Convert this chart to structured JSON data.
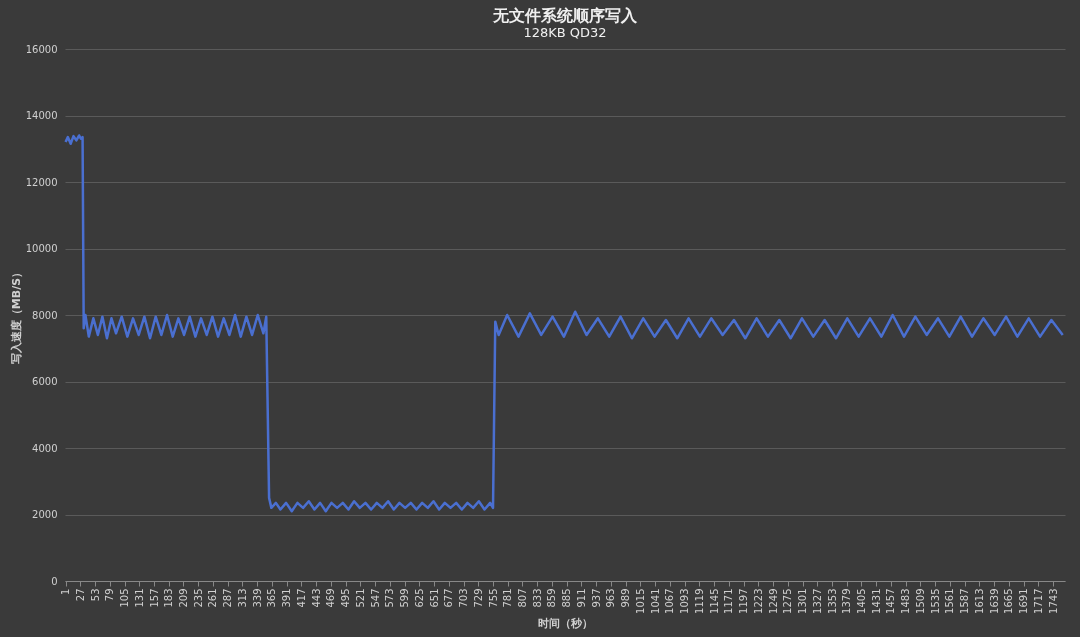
{
  "chart_data": {
    "type": "line",
    "title": "无文件系统顺序写入",
    "subtitle": "128KB QD32",
    "xlabel": "时间（秒）",
    "ylabel": "写入速度（MB/S）",
    "xlim": [
      0,
      1764
    ],
    "xticks": [
      1,
      27,
      53,
      79,
      105,
      131,
      157,
      183,
      209,
      235,
      261,
      287,
      313,
      339,
      365,
      391,
      417,
      443,
      469,
      495,
      521,
      547,
      573,
      599,
      625,
      651,
      677,
      703,
      729,
      755,
      781,
      807,
      833,
      859,
      885,
      911,
      937,
      963,
      989,
      1015,
      1041,
      1067,
      1093,
      1119,
      1145,
      1171,
      1197,
      1223,
      1249,
      1275,
      1301,
      1327,
      1353,
      1379,
      1405,
      1431,
      1457,
      1483,
      1509,
      1535,
      1561,
      1587,
      1613,
      1639,
      1665,
      1691,
      1717,
      1743
    ],
    "ylim": [
      0,
      16000
    ],
    "yticks": [
      0,
      2000,
      4000,
      6000,
      8000,
      10000,
      12000,
      14000,
      16000
    ],
    "grid": "y",
    "series": [
      {
        "color": "#4a6fd0",
        "x": [
          1,
          5,
          10,
          15,
          20,
          25,
          28,
          31,
          33,
          36,
          42,
          50,
          58,
          66,
          74,
          82,
          90,
          100,
          110,
          120,
          130,
          140,
          150,
          160,
          170,
          180,
          190,
          200,
          210,
          220,
          230,
          240,
          250,
          260,
          270,
          280,
          290,
          300,
          310,
          320,
          330,
          340,
          350,
          355,
          360,
          364,
          372,
          380,
          390,
          400,
          410,
          420,
          430,
          440,
          450,
          460,
          470,
          480,
          490,
          500,
          510,
          520,
          530,
          540,
          550,
          560,
          570,
          580,
          590,
          600,
          610,
          620,
          630,
          640,
          650,
          660,
          670,
          680,
          690,
          700,
          710,
          720,
          730,
          740,
          750,
          755,
          759,
          765,
          780,
          800,
          820,
          840,
          860,
          880,
          900,
          920,
          940,
          960,
          980,
          1000,
          1020,
          1040,
          1060,
          1080,
          1100,
          1120,
          1140,
          1160,
          1180,
          1200,
          1220,
          1240,
          1260,
          1280,
          1300,
          1320,
          1340,
          1360,
          1380,
          1400,
          1420,
          1440,
          1460,
          1480,
          1500,
          1520,
          1540,
          1560,
          1580,
          1600,
          1620,
          1640,
          1660,
          1680,
          1700,
          1720,
          1740,
          1760
        ],
        "values": [
          13200,
          13350,
          13150,
          13380,
          13250,
          13400,
          13300,
          13350,
          7600,
          8000,
          7350,
          7900,
          7400,
          7950,
          7300,
          7900,
          7450,
          7950,
          7350,
          7900,
          7400,
          7950,
          7300,
          7950,
          7400,
          8000,
          7350,
          7900,
          7400,
          7950,
          7350,
          7900,
          7400,
          7950,
          7350,
          7900,
          7400,
          8000,
          7350,
          7950,
          7400,
          8000,
          7450,
          7950,
          2500,
          2200,
          2350,
          2150,
          2350,
          2100,
          2350,
          2200,
          2400,
          2150,
          2350,
          2100,
          2350,
          2200,
          2350,
          2150,
          2400,
          2200,
          2350,
          2150,
          2350,
          2200,
          2400,
          2150,
          2350,
          2200,
          2350,
          2150,
          2350,
          2200,
          2400,
          2150,
          2350,
          2200,
          2350,
          2150,
          2350,
          2200,
          2400,
          2150,
          2350,
          2200,
          7800,
          7400,
          8000,
          7350,
          8050,
          7400,
          7950,
          7350,
          8100,
          7400,
          7900,
          7350,
          7950,
          7300,
          7900,
          7350,
          7850,
          7300,
          7900,
          7350,
          7900,
          7400,
          7850,
          7300,
          7900,
          7350,
          7850,
          7300,
          7900,
          7350,
          7850,
          7300,
          7900,
          7350,
          7900,
          7350,
          8000,
          7350,
          7950,
          7400,
          7900,
          7350,
          7950,
          7350,
          7900,
          7400,
          7950,
          7350,
          7900,
          7350,
          7850,
          7400
        ]
      }
    ]
  }
}
